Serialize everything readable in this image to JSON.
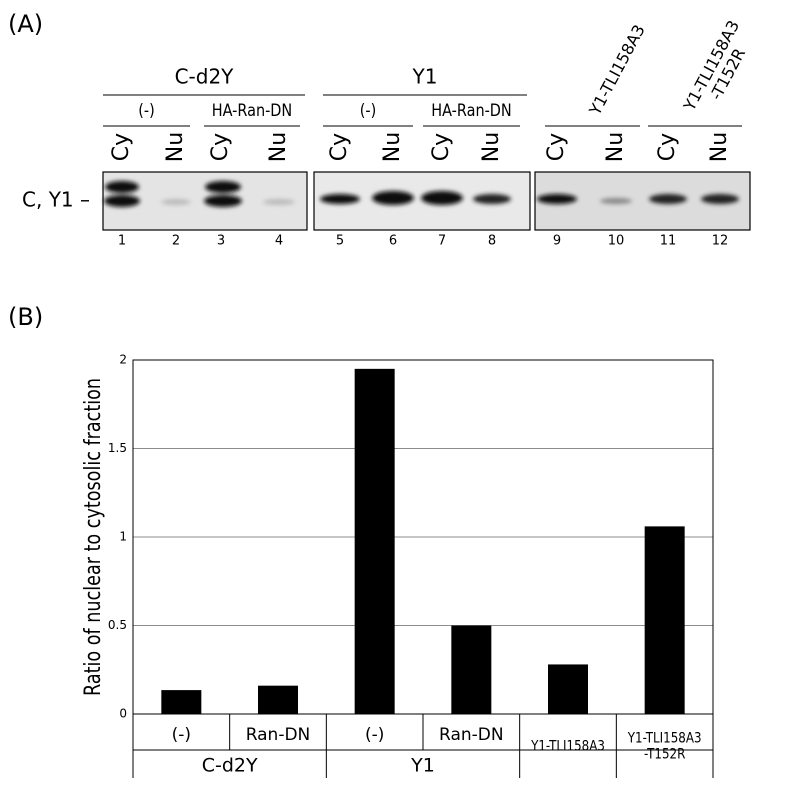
{
  "panel_a": {
    "label": "(A)",
    "row_label": "C, Y1 –",
    "groups": [
      {
        "name": "C-d2Y",
        "subgroups": [
          {
            "name": "(-)",
            "lanes": [
              "Cy",
              "Nu"
            ]
          },
          {
            "name": "HA-Ran-DN",
            "lanes": [
              "Cy",
              "Nu"
            ]
          }
        ]
      },
      {
        "name": "Y1",
        "subgroups": [
          {
            "name": "(-)",
            "lanes": [
              "Cy",
              "Nu"
            ]
          },
          {
            "name": "HA-Ran-DN",
            "lanes": [
              "Cy",
              "Nu"
            ]
          }
        ]
      },
      {
        "subgroups": [
          {
            "name": "Y1-TLI158A3",
            "lanes": [
              "Cy",
              "Nu"
            ]
          },
          {
            "name": "Y1-TLI158A3 -T152R",
            "lanes": [
              "Cy",
              "Nu"
            ]
          }
        ]
      }
    ],
    "lane_numbers": [
      1,
      2,
      3,
      4,
      5,
      6,
      7,
      8,
      9,
      10,
      11,
      12
    ]
  },
  "panel_b_label": "(B)",
  "chart_data": {
    "type": "bar",
    "ylabel": "Ratio of nuclear to cytosolic fraction",
    "categories": [
      "(-)",
      "Ran-DN",
      "(-)",
      "Ran-DN",
      "Y1-TLI158A3",
      "Y1-TLI158A3 -T152R"
    ],
    "values": [
      0.135,
      0.16,
      1.95,
      0.5,
      0.28,
      1.06
    ],
    "color": "#000000",
    "groups": [
      {
        "name": "C-d2Y",
        "span": 2
      },
      {
        "name": "Y1",
        "span": 2
      },
      {
        "span": 1
      },
      {
        "span": 1
      }
    ],
    "ylim": [
      0,
      2
    ],
    "yticks": [
      0,
      0.5,
      1,
      1.5,
      2
    ],
    "grid": true
  }
}
